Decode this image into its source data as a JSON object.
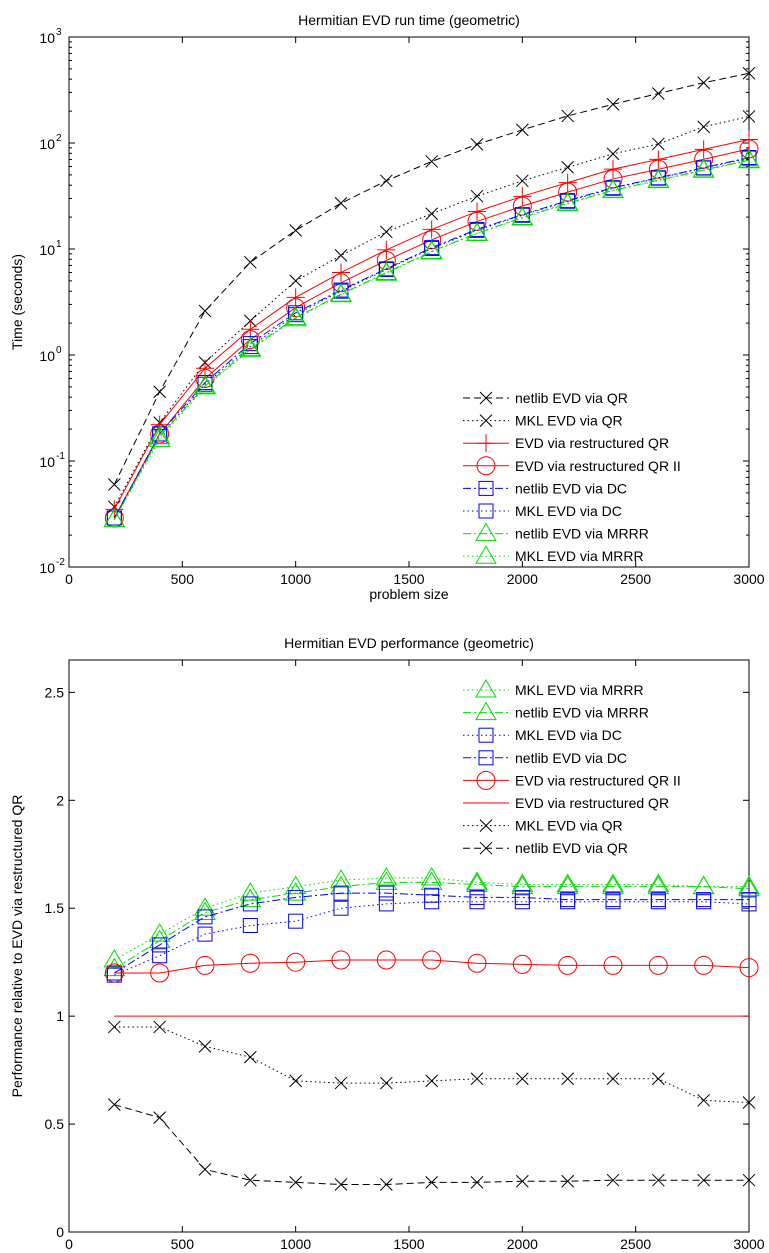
{
  "chart_data": [
    {
      "type": "line",
      "title": "Hermitian EVD run time (geometric)",
      "xlabel": "problem size",
      "ylabel": "Time (seconds)",
      "xlim": [
        0,
        3000
      ],
      "ylim": [
        0.01,
        1000
      ],
      "yscale": "log",
      "xticks": [
        "0",
        "500",
        "1000",
        "1500",
        "2000",
        "2500",
        "3000"
      ],
      "yticks": [
        "10",
        "10",
        "10",
        "10",
        "10",
        "10"
      ],
      "ytick_exponents": [
        "-2",
        "-1",
        "0",
        "1",
        "2",
        "3"
      ],
      "grid": false,
      "legend_position": "bottom-right",
      "x": [
        200,
        400,
        600,
        800,
        1000,
        1200,
        1400,
        1600,
        1800,
        2000,
        2200,
        2400,
        2600,
        2800,
        3000
      ],
      "series": [
        {
          "name": "netlib EVD via QR",
          "color": "#000000",
          "dash": "dashed",
          "marker": "x",
          "values": [
            0.06,
            0.45,
            2.6,
            7.5,
            15,
            27,
            44,
            67,
            97,
            133,
            180,
            232,
            293,
            370,
            455
          ]
        },
        {
          "name": "MKL EVD via QR",
          "color": "#000000",
          "dash": "dotted",
          "marker": "x",
          "values": [
            0.037,
            0.23,
            0.85,
            2.1,
            5,
            8.7,
            14.5,
            21.5,
            31.5,
            44,
            59,
            79,
            98,
            142,
            178
          ]
        },
        {
          "name": "EVD via restructured QR",
          "color": "#ff0000",
          "dash": "solid",
          "marker": "plus",
          "values": [
            0.035,
            0.22,
            0.75,
            1.75,
            3.5,
            6,
            9.8,
            15.3,
            22.6,
            31.4,
            42.3,
            56.7,
            70,
            87,
            108
          ]
        },
        {
          "name": "EVD via restructured QR II",
          "color": "#ff0000",
          "dash": "solid",
          "marker": "circle",
          "values": [
            0.029,
            0.18,
            0.6,
            1.4,
            2.8,
            4.8,
            7.8,
            12.2,
            18.2,
            25.4,
            34.4,
            45.8,
            56.6,
            70.3,
            88
          ]
        },
        {
          "name": "netlib EVD via DC",
          "color": "#0000ff",
          "dash": "dashdot",
          "marker": "square",
          "values": [
            0.029,
            0.18,
            0.55,
            1.28,
            2.5,
            4.1,
            6.5,
            10.3,
            15.3,
            21.1,
            28.6,
            37.9,
            47,
            58.4,
            73
          ]
        },
        {
          "name": "MKL EVD via DC",
          "color": "#0000ff",
          "dash": "dotted",
          "marker": "square",
          "values": [
            0.029,
            0.17,
            0.53,
            1.2,
            2.4,
            4.0,
            6.4,
            10.1,
            15.0,
            20.8,
            28.2,
            37.4,
            46.6,
            58,
            72
          ]
        },
        {
          "name": "netlib EVD via MRRR",
          "color": "#00dd00",
          "dash": "dashdot",
          "marker": "triangle",
          "values": [
            0.028,
            0.17,
            0.51,
            1.15,
            2.25,
            3.75,
            6.0,
            9.5,
            14.1,
            19.8,
            27.1,
            35.8,
            44.6,
            55.8,
            69
          ]
        },
        {
          "name": "MKL EVD via MRRR",
          "color": "#00dd00",
          "dash": "dotted",
          "marker": "triangle",
          "values": [
            0.028,
            0.16,
            0.5,
            1.12,
            2.2,
            3.7,
            5.9,
            9.4,
            14.0,
            19.6,
            26.8,
            35.5,
            44.2,
            55.3,
            68
          ]
        }
      ]
    },
    {
      "type": "line",
      "title": "Hermitian EVD performance (geometric)",
      "xlabel": "problem size",
      "ylabel": "Performance relative to EVD via restructured QR",
      "xlim": [
        0,
        3000
      ],
      "ylim": [
        0,
        2.65
      ],
      "xticks": [
        "0",
        "500",
        "1000",
        "1500",
        "2000",
        "2500",
        "3000"
      ],
      "yticks": [
        "0",
        "0.5",
        "1",
        "1.5",
        "2",
        "2.5"
      ],
      "grid": false,
      "legend_position": "top-right",
      "x": [
        200,
        400,
        600,
        800,
        1000,
        1200,
        1400,
        1600,
        1800,
        2000,
        2200,
        2400,
        2600,
        2800,
        3000
      ],
      "series": [
        {
          "name": "MKL EVD via MRRR",
          "color": "#00dd00",
          "dash": "dotted",
          "marker": "triangle",
          "values": [
            1.26,
            1.38,
            1.5,
            1.57,
            1.6,
            1.63,
            1.64,
            1.64,
            1.62,
            1.61,
            1.61,
            1.61,
            1.61,
            1.6,
            1.6
          ]
        },
        {
          "name": "netlib EVD via MRRR",
          "color": "#00dd00",
          "dash": "dashdot",
          "marker": "triangle",
          "values": [
            1.22,
            1.35,
            1.48,
            1.54,
            1.57,
            1.6,
            1.62,
            1.62,
            1.61,
            1.6,
            1.6,
            1.6,
            1.6,
            1.6,
            1.59
          ]
        },
        {
          "name": "MKL EVD via DC",
          "color": "#0000ff",
          "dash": "dotted",
          "marker": "square",
          "values": [
            1.19,
            1.28,
            1.38,
            1.42,
            1.44,
            1.5,
            1.52,
            1.53,
            1.53,
            1.53,
            1.53,
            1.53,
            1.53,
            1.53,
            1.52
          ]
        },
        {
          "name": "netlib EVD via DC",
          "color": "#0000ff",
          "dash": "dashdot",
          "marker": "square",
          "values": [
            1.2,
            1.33,
            1.46,
            1.52,
            1.55,
            1.57,
            1.57,
            1.56,
            1.55,
            1.55,
            1.54,
            1.54,
            1.54,
            1.54,
            1.54
          ]
        },
        {
          "name": "EVD via restructured QR II",
          "color": "#ff0000",
          "dash": "solid",
          "marker": "circle",
          "values": [
            1.2,
            1.2,
            1.235,
            1.245,
            1.25,
            1.26,
            1.26,
            1.26,
            1.245,
            1.24,
            1.235,
            1.235,
            1.235,
            1.235,
            1.225
          ]
        },
        {
          "name": "EVD via restructured QR",
          "color": "#ff0000",
          "dash": "solid",
          "marker": "none",
          "values": [
            1,
            1,
            1,
            1,
            1,
            1,
            1,
            1,
            1,
            1,
            1,
            1,
            1,
            1,
            1
          ]
        },
        {
          "name": "MKL EVD via QR",
          "color": "#000000",
          "dash": "dotted",
          "marker": "x",
          "values": [
            0.95,
            0.95,
            0.86,
            0.81,
            0.7,
            0.69,
            0.69,
            0.7,
            0.71,
            0.71,
            0.71,
            0.71,
            0.71,
            0.61,
            0.6
          ]
        },
        {
          "name": "netlib EVD via QR",
          "color": "#000000",
          "dash": "dashed",
          "marker": "x",
          "values": [
            0.59,
            0.53,
            0.29,
            0.24,
            0.23,
            0.22,
            0.22,
            0.23,
            0.23,
            0.235,
            0.235,
            0.24,
            0.24,
            0.24,
            0.24
          ]
        }
      ]
    }
  ]
}
